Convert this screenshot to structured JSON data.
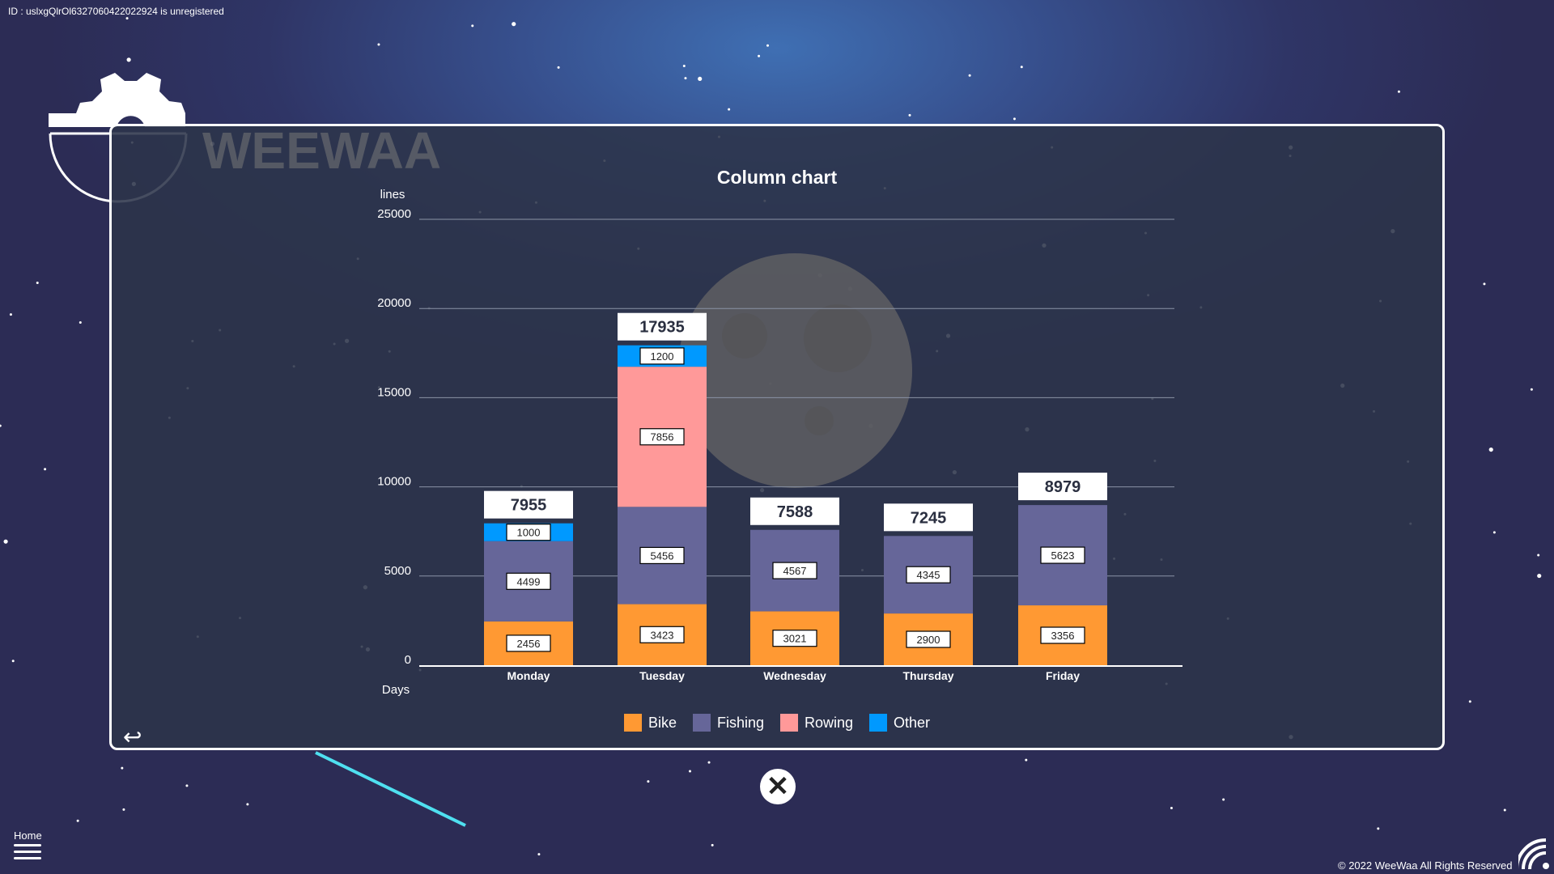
{
  "header": {
    "id_text": "ID : uslxgQlrOl6327060422022924 is unregistered"
  },
  "logo": {
    "text": "WEEWAA"
  },
  "footer": {
    "home_label": "Home",
    "copyright": "© 2022 WeeWaa All Rights Reserved"
  },
  "icons": {
    "back": "back-arrow-icon",
    "close": "close-icon",
    "menu": "hamburger-icon",
    "wifi": "wifi-icon",
    "logo": "gear-logo-icon"
  },
  "chart_data": {
    "type": "bar",
    "stacked": true,
    "title": "Column chart",
    "ylabel": "lines",
    "xlabel": "Days",
    "ylim": [
      0,
      25000
    ],
    "yticks": [
      0,
      5000,
      10000,
      15000,
      20000,
      25000
    ],
    "grid": true,
    "legend": "bottom",
    "categories": [
      "Monday",
      "Tuesday",
      "Wednesday",
      "Thursday",
      "Friday"
    ],
    "series": [
      {
        "name": "Bike",
        "color": "#ff9933",
        "values": [
          2456,
          3423,
          3021,
          2900,
          3356
        ]
      },
      {
        "name": "Fishing",
        "color": "#666699",
        "values": [
          4499,
          5456,
          4567,
          4345,
          5623
        ]
      },
      {
        "name": "Rowing",
        "color": "#ff9999",
        "values": [
          0,
          7856,
          0,
          0,
          0
        ]
      },
      {
        "name": "Other",
        "color": "#0099ff",
        "values": [
          1000,
          1200,
          0,
          0,
          0
        ]
      }
    ],
    "totals": [
      7955,
      17935,
      7588,
      7245,
      8979
    ]
  }
}
